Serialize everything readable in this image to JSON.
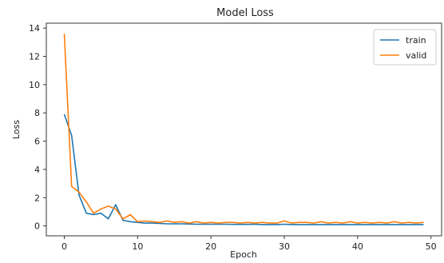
{
  "chart_data": {
    "type": "line",
    "title": "Model Loss",
    "xlabel": "Epoch",
    "ylabel": "Loss",
    "xlim": [
      -2.45,
      51.45
    ],
    "ylim": [
      -0.7,
      14.35
    ],
    "xticks": [
      0,
      10,
      20,
      30,
      40,
      50
    ],
    "yticks": [
      0,
      2,
      4,
      6,
      8,
      10,
      12,
      14
    ],
    "grid": false,
    "legend_position": "top-right",
    "series": [
      {
        "name": "train",
        "color": "#1f77b4",
        "x": [
          0,
          1,
          2,
          3,
          4,
          5,
          6,
          7,
          8,
          9,
          10,
          11,
          12,
          13,
          14,
          15,
          16,
          17,
          18,
          19,
          20,
          21,
          22,
          23,
          24,
          25,
          26,
          27,
          28,
          29,
          30,
          31,
          32,
          33,
          34,
          35,
          36,
          37,
          38,
          39,
          40,
          41,
          42,
          43,
          44,
          45,
          46,
          47,
          48,
          49
        ],
        "values": [
          7.9,
          6.4,
          2.2,
          0.9,
          0.8,
          0.9,
          0.5,
          1.5,
          0.4,
          0.3,
          0.25,
          0.2,
          0.2,
          0.18,
          0.15,
          0.15,
          0.15,
          0.14,
          0.12,
          0.12,
          0.12,
          0.12,
          0.12,
          0.11,
          0.11,
          0.11,
          0.12,
          0.1,
          0.1,
          0.1,
          0.12,
          0.1,
          0.1,
          0.1,
          0.1,
          0.1,
          0.1,
          0.1,
          0.1,
          0.1,
          0.1,
          0.1,
          0.1,
          0.1,
          0.1,
          0.1,
          0.1,
          0.1,
          0.1,
          0.1
        ]
      },
      {
        "name": "valid",
        "color": "#ff7f0e",
        "x": [
          0,
          1,
          2,
          3,
          4,
          5,
          6,
          7,
          8,
          9,
          10,
          11,
          12,
          13,
          14,
          15,
          16,
          17,
          18,
          19,
          20,
          21,
          22,
          23,
          24,
          25,
          26,
          27,
          28,
          29,
          30,
          31,
          32,
          33,
          34,
          35,
          36,
          37,
          38,
          39,
          40,
          41,
          42,
          43,
          44,
          45,
          46,
          47,
          48,
          49
        ],
        "values": [
          13.6,
          2.8,
          2.4,
          1.7,
          0.9,
          1.2,
          1.4,
          1.2,
          0.5,
          0.8,
          0.3,
          0.35,
          0.3,
          0.25,
          0.35,
          0.25,
          0.3,
          0.2,
          0.3,
          0.2,
          0.25,
          0.2,
          0.25,
          0.25,
          0.2,
          0.25,
          0.2,
          0.25,
          0.2,
          0.2,
          0.35,
          0.2,
          0.25,
          0.25,
          0.2,
          0.3,
          0.2,
          0.25,
          0.2,
          0.3,
          0.2,
          0.25,
          0.2,
          0.25,
          0.2,
          0.3,
          0.2,
          0.25,
          0.2,
          0.25
        ]
      }
    ]
  }
}
